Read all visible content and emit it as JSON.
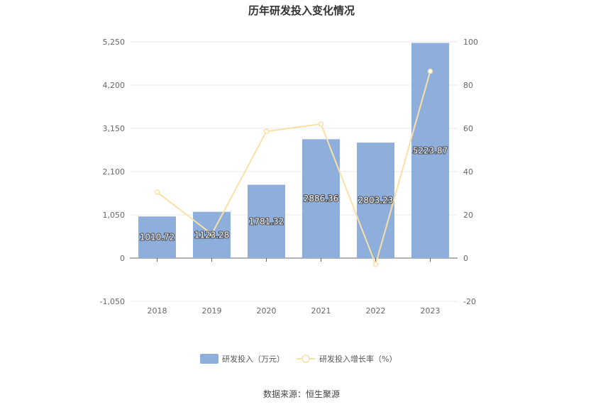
{
  "chart_data": {
    "type": "bar",
    "title": "历年研发投入变化情况",
    "categories": [
      "2018",
      "2019",
      "2020",
      "2021",
      "2022",
      "2023"
    ],
    "series": [
      {
        "name": "研发投入（万元）",
        "type": "bar",
        "axis": "left",
        "values": [
          1010.72,
          1123.28,
          1781.32,
          2886.36,
          2803.23,
          5223.87
        ],
        "labels": [
          "1010.72",
          "1123.28",
          "1781.32",
          "2886.36",
          "2803.23",
          "5223.87"
        ]
      },
      {
        "name": "研发投入增长率（%）",
        "type": "line",
        "axis": "right",
        "values": [
          30.5,
          11.1,
          58.6,
          62.0,
          -2.9,
          86.4
        ]
      }
    ],
    "y_left": {
      "ylim": [
        -1050,
        5250
      ],
      "ticks": [
        "-1,050",
        "0",
        "1,050",
        "2,100",
        "3,150",
        "4,200",
        "5,250"
      ],
      "tick_values": [
        -1050,
        0,
        1050,
        2100,
        3150,
        4200,
        5250
      ]
    },
    "y_right": {
      "ylim": [
        -20,
        100
      ],
      "ticks": [
        "-20",
        "0",
        "20",
        "40",
        "60",
        "80",
        "100"
      ],
      "tick_values": [
        -20,
        0,
        20,
        40,
        60,
        80,
        100
      ]
    },
    "grid": true,
    "legend_position": "bottom",
    "colors": {
      "bar": "#8eaedb",
      "line": "#fbe0a6",
      "grid": "#e8e8e8",
      "axis": "#666666"
    }
  },
  "source": "数据来源：恒生聚源"
}
